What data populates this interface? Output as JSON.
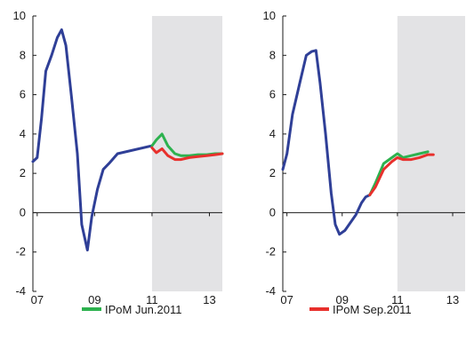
{
  "chart_data": [
    {
      "type": "line",
      "xlim": [
        2006.85,
        2013.45
      ],
      "ylim": [
        -4,
        10
      ],
      "y_ticks": [
        -4,
        -2,
        0,
        2,
        4,
        6,
        8,
        10
      ],
      "x_ticks": [
        {
          "value": 2007,
          "label": "07"
        },
        {
          "value": 2009,
          "label": "09"
        },
        {
          "value": 2011,
          "label": "11"
        },
        {
          "value": 2013,
          "label": "13"
        }
      ],
      "shaded_region": [
        2011.0,
        2013.45
      ],
      "shade_color": "#e3e3e5",
      "series": [
        {
          "role": "historical",
          "color": "#2f3f97",
          "points": [
            [
              2006.85,
              2.6
            ],
            [
              2007.0,
              2.8
            ],
            [
              2007.15,
              4.8
            ],
            [
              2007.3,
              7.2
            ],
            [
              2007.5,
              8.0
            ],
            [
              2007.7,
              8.9
            ],
            [
              2007.85,
              9.3
            ],
            [
              2008.0,
              8.5
            ],
            [
              2008.2,
              5.8
            ],
            [
              2008.4,
              3.0
            ],
            [
              2008.55,
              -0.6
            ],
            [
              2008.75,
              -1.9
            ],
            [
              2008.9,
              -0.2
            ],
            [
              2009.1,
              1.2
            ],
            [
              2009.3,
              2.2
            ],
            [
              2009.5,
              2.5
            ],
            [
              2009.8,
              3.0
            ],
            [
              2011.0,
              3.4
            ]
          ]
        },
        {
          "name": "IPoM Jun.2011",
          "color": "#2db24f",
          "points": [
            [
              2011.0,
              3.4
            ],
            [
              2011.15,
              3.7
            ],
            [
              2011.35,
              4.0
            ],
            [
              2011.55,
              3.4
            ],
            [
              2011.8,
              3.0
            ],
            [
              2012.0,
              2.9
            ],
            [
              2012.3,
              2.9
            ],
            [
              2012.6,
              2.95
            ],
            [
              2012.9,
              2.95
            ],
            [
              2013.2,
              3.0
            ],
            [
              2013.45,
              3.0
            ]
          ]
        },
        {
          "name": "",
          "color": "#e8302c",
          "points": [
            [
              2011.0,
              3.3
            ],
            [
              2011.15,
              3.05
            ],
            [
              2011.35,
              3.25
            ],
            [
              2011.55,
              2.9
            ],
            [
              2011.8,
              2.7
            ],
            [
              2012.0,
              2.7
            ],
            [
              2012.3,
              2.8
            ],
            [
              2012.6,
              2.85
            ],
            [
              2012.9,
              2.9
            ],
            [
              2013.2,
              2.95
            ],
            [
              2013.45,
              3.0
            ]
          ]
        }
      ],
      "legend": {
        "label": "IPoM Jun.2011",
        "color": "#2db24f",
        "placement": "bottom-center"
      }
    },
    {
      "type": "line",
      "xlim": [
        2006.85,
        2013.45
      ],
      "ylim": [
        -4,
        10
      ],
      "y_ticks": [
        -4,
        -2,
        0,
        2,
        4,
        6,
        8,
        10
      ],
      "x_ticks": [
        {
          "value": 2007,
          "label": "07"
        },
        {
          "value": 2009,
          "label": "09"
        },
        {
          "value": 2011,
          "label": "11"
        },
        {
          "value": 2013,
          "label": "13"
        }
      ],
      "shaded_region": [
        2011.0,
        2013.45
      ],
      "shade_color": "#e3e3e5",
      "series": [
        {
          "role": "historical",
          "color": "#2f3f97",
          "points": [
            [
              2006.85,
              2.2
            ],
            [
              2007.0,
              3.0
            ],
            [
              2007.2,
              5.0
            ],
            [
              2007.45,
              6.5
            ],
            [
              2007.7,
              8.0
            ],
            [
              2007.9,
              8.2
            ],
            [
              2008.05,
              8.25
            ],
            [
              2008.2,
              6.6
            ],
            [
              2008.4,
              4.0
            ],
            [
              2008.6,
              1.0
            ],
            [
              2008.75,
              -0.6
            ],
            [
              2008.9,
              -1.1
            ],
            [
              2009.1,
              -0.9
            ],
            [
              2009.3,
              -0.5
            ],
            [
              2009.5,
              -0.1
            ],
            [
              2009.7,
              0.5
            ],
            [
              2009.85,
              0.8
            ],
            [
              2010.0,
              0.9
            ]
          ]
        },
        {
          "name": "",
          "color": "#2db24f",
          "points": [
            [
              2010.0,
              0.9
            ],
            [
              2010.2,
              1.5
            ],
            [
              2010.5,
              2.5
            ],
            [
              2010.8,
              2.8
            ],
            [
              2011.0,
              3.0
            ],
            [
              2011.2,
              2.8
            ],
            [
              2011.5,
              2.9
            ],
            [
              2011.8,
              3.0
            ],
            [
              2012.1,
              3.1
            ]
          ]
        },
        {
          "name": "IPoM Sep.2011",
          "color": "#e8302c",
          "points": [
            [
              2010.0,
              0.9
            ],
            [
              2010.2,
              1.3
            ],
            [
              2010.5,
              2.2
            ],
            [
              2010.8,
              2.6
            ],
            [
              2011.0,
              2.8
            ],
            [
              2011.2,
              2.7
            ],
            [
              2011.5,
              2.7
            ],
            [
              2011.8,
              2.8
            ],
            [
              2012.1,
              2.95
            ],
            [
              2012.3,
              2.95
            ]
          ]
        }
      ],
      "legend": {
        "label": "IPoM Sep.2011",
        "color": "#e8302c",
        "placement": "bottom-center"
      }
    }
  ]
}
